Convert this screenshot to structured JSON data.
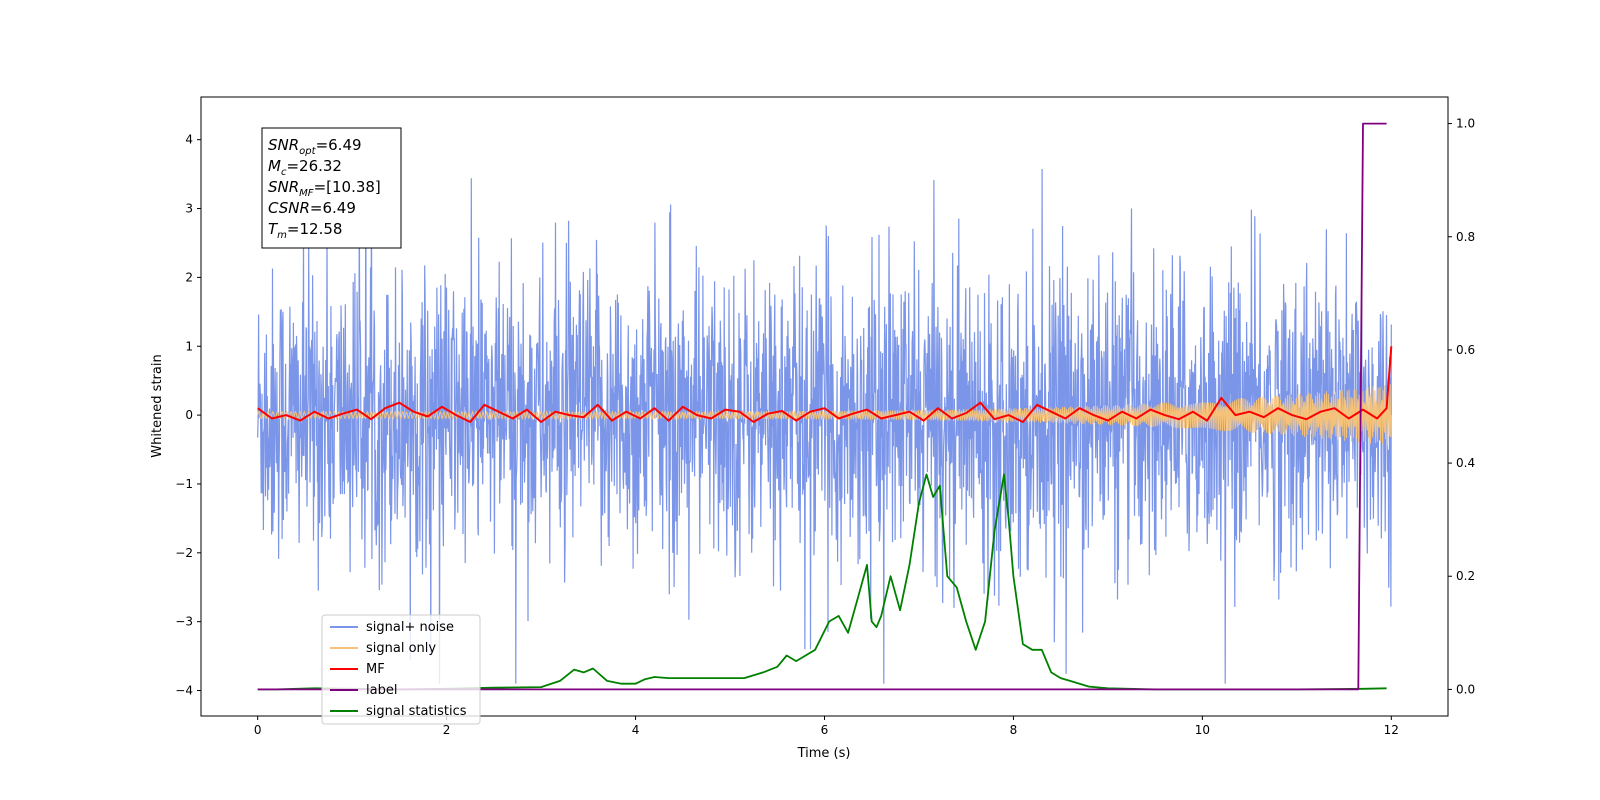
{
  "chart_data": {
    "type": "line",
    "xlabel": "Time (s)",
    "ylabel": "Whitened strain",
    "xlim": [
      -0.6,
      12.6
    ],
    "ylim": [
      -4.37,
      4.62
    ],
    "y2lim": [
      -0.047,
      1.047
    ],
    "x_ticks": [
      "0",
      "2",
      "4",
      "6",
      "8",
      "10",
      "12"
    ],
    "y_ticks": [
      "−4",
      "−3",
      "−2",
      "−1",
      "0",
      "1",
      "2",
      "3",
      "4"
    ],
    "y2_ticks": [
      "0.0",
      "0.2",
      "0.4",
      "0.6",
      "0.8",
      "1.0"
    ],
    "legend_position": "lower-left",
    "annotation": [
      {
        "base": "SNR",
        "sub": "opt",
        "value": "=6.49"
      },
      {
        "base": "M",
        "sub": "c",
        "value": "=26.32"
      },
      {
        "base": "SNR",
        "sub": "MF",
        "value": "=[10.38]"
      },
      {
        "base": "CSNR",
        "sub": "",
        "value": "=6.49"
      },
      {
        "base": "T",
        "sub": "m",
        "value": "=12.58"
      }
    ],
    "series": [
      {
        "name": "signal+ noise",
        "color": "#7b95e8",
        "axis": "left",
        "style": "dense noise band, roughly -2.5 to 2.5 with spikes to about ±4.2"
      },
      {
        "name": "signal only",
        "color": "#f5c27a",
        "axis": "left",
        "style": "oscillating chirp growing toward t=12 (amplitude ~0.4)"
      },
      {
        "name": "MF",
        "color": "#ff0000",
        "axis": "left",
        "x": [
          0,
          0.15,
          0.3,
          0.45,
          0.6,
          0.75,
          0.9,
          1.05,
          1.2,
          1.35,
          1.5,
          1.65,
          1.8,
          1.95,
          2.1,
          2.25,
          2.4,
          2.55,
          2.7,
          2.85,
          3.0,
          3.15,
          3.3,
          3.45,
          3.6,
          3.75,
          3.9,
          4.05,
          4.2,
          4.35,
          4.5,
          4.65,
          4.8,
          4.95,
          5.1,
          5.25,
          5.4,
          5.55,
          5.7,
          5.85,
          6.0,
          6.15,
          6.3,
          6.45,
          6.6,
          6.75,
          6.9,
          7.05,
          7.2,
          7.35,
          7.5,
          7.65,
          7.8,
          7.95,
          8.1,
          8.25,
          8.4,
          8.55,
          8.7,
          8.85,
          9.0,
          9.15,
          9.3,
          9.45,
          9.6,
          9.75,
          9.9,
          10.05,
          10.2,
          10.35,
          10.5,
          10.65,
          10.8,
          10.95,
          11.1,
          11.25,
          11.4,
          11.55,
          11.7,
          11.85,
          11.95,
          12.0
        ],
        "values": [
          0.1,
          -0.05,
          0.0,
          -0.08,
          0.05,
          -0.05,
          0.02,
          0.08,
          -0.06,
          0.1,
          0.18,
          0.05,
          -0.02,
          0.12,
          0.0,
          -0.1,
          0.15,
          0.05,
          -0.05,
          0.08,
          -0.1,
          0.05,
          0.0,
          -0.03,
          0.15,
          -0.08,
          0.05,
          -0.05,
          0.1,
          -0.08,
          0.12,
          0.0,
          -0.05,
          0.08,
          0.05,
          -0.1,
          0.02,
          0.06,
          -0.08,
          0.05,
          0.1,
          -0.05,
          0.02,
          0.08,
          -0.05,
          0.0,
          0.05,
          -0.08,
          0.1,
          -0.05,
          0.03,
          0.18,
          -0.06,
          0.0,
          -0.1,
          0.15,
          0.05,
          -0.05,
          0.1,
          0.0,
          -0.08,
          0.05,
          -0.05,
          0.08,
          0.0,
          -0.06,
          0.05,
          -0.08,
          0.25,
          0.0,
          0.05,
          -0.03,
          0.1,
          0.0,
          -0.06,
          0.05,
          0.1,
          -0.05,
          0.08,
          -0.05,
          0.1,
          1.0
        ]
      },
      {
        "name": "label",
        "color": "#800080",
        "axis": "right",
        "x": [
          0,
          11.65,
          11.7,
          11.95
        ],
        "values": [
          0,
          0,
          1,
          1
        ]
      },
      {
        "name": "signal statistics",
        "color": "#008000",
        "axis": "right",
        "x": [
          0,
          0.2,
          0.6,
          1.0,
          1.5,
          2.0,
          2.5,
          3.0,
          3.2,
          3.35,
          3.45,
          3.55,
          3.7,
          3.85,
          4.0,
          4.1,
          4.2,
          4.35,
          4.55,
          4.75,
          4.95,
          5.15,
          5.35,
          5.5,
          5.6,
          5.7,
          5.8,
          5.9,
          6.05,
          6.15,
          6.25,
          6.35,
          6.45,
          6.5,
          6.55,
          6.6,
          6.7,
          6.8,
          6.9,
          7.0,
          7.08,
          7.15,
          7.22,
          7.3,
          7.4,
          7.5,
          7.6,
          7.7,
          7.8,
          7.9,
          7.95,
          8.0,
          8.1,
          8.2,
          8.3,
          8.4,
          8.5,
          8.6,
          8.8,
          9.0,
          9.5,
          10.0,
          11.0,
          11.7,
          11.95
        ],
        "values": [
          0,
          0,
          0.002,
          0.001,
          0.0,
          0.001,
          0.003,
          0.004,
          0.015,
          0.035,
          0.03,
          0.037,
          0.015,
          0.01,
          0.01,
          0.018,
          0.022,
          0.02,
          0.02,
          0.02,
          0.02,
          0.02,
          0.03,
          0.04,
          0.06,
          0.05,
          0.06,
          0.07,
          0.12,
          0.13,
          0.1,
          0.16,
          0.22,
          0.12,
          0.11,
          0.13,
          0.2,
          0.14,
          0.22,
          0.33,
          0.38,
          0.34,
          0.36,
          0.2,
          0.18,
          0.12,
          0.07,
          0.12,
          0.28,
          0.38,
          0.3,
          0.2,
          0.08,
          0.07,
          0.07,
          0.03,
          0.02,
          0.015,
          0.005,
          0.002,
          0.0,
          0.0,
          0.0,
          0.001,
          0.002
        ]
      }
    ]
  }
}
